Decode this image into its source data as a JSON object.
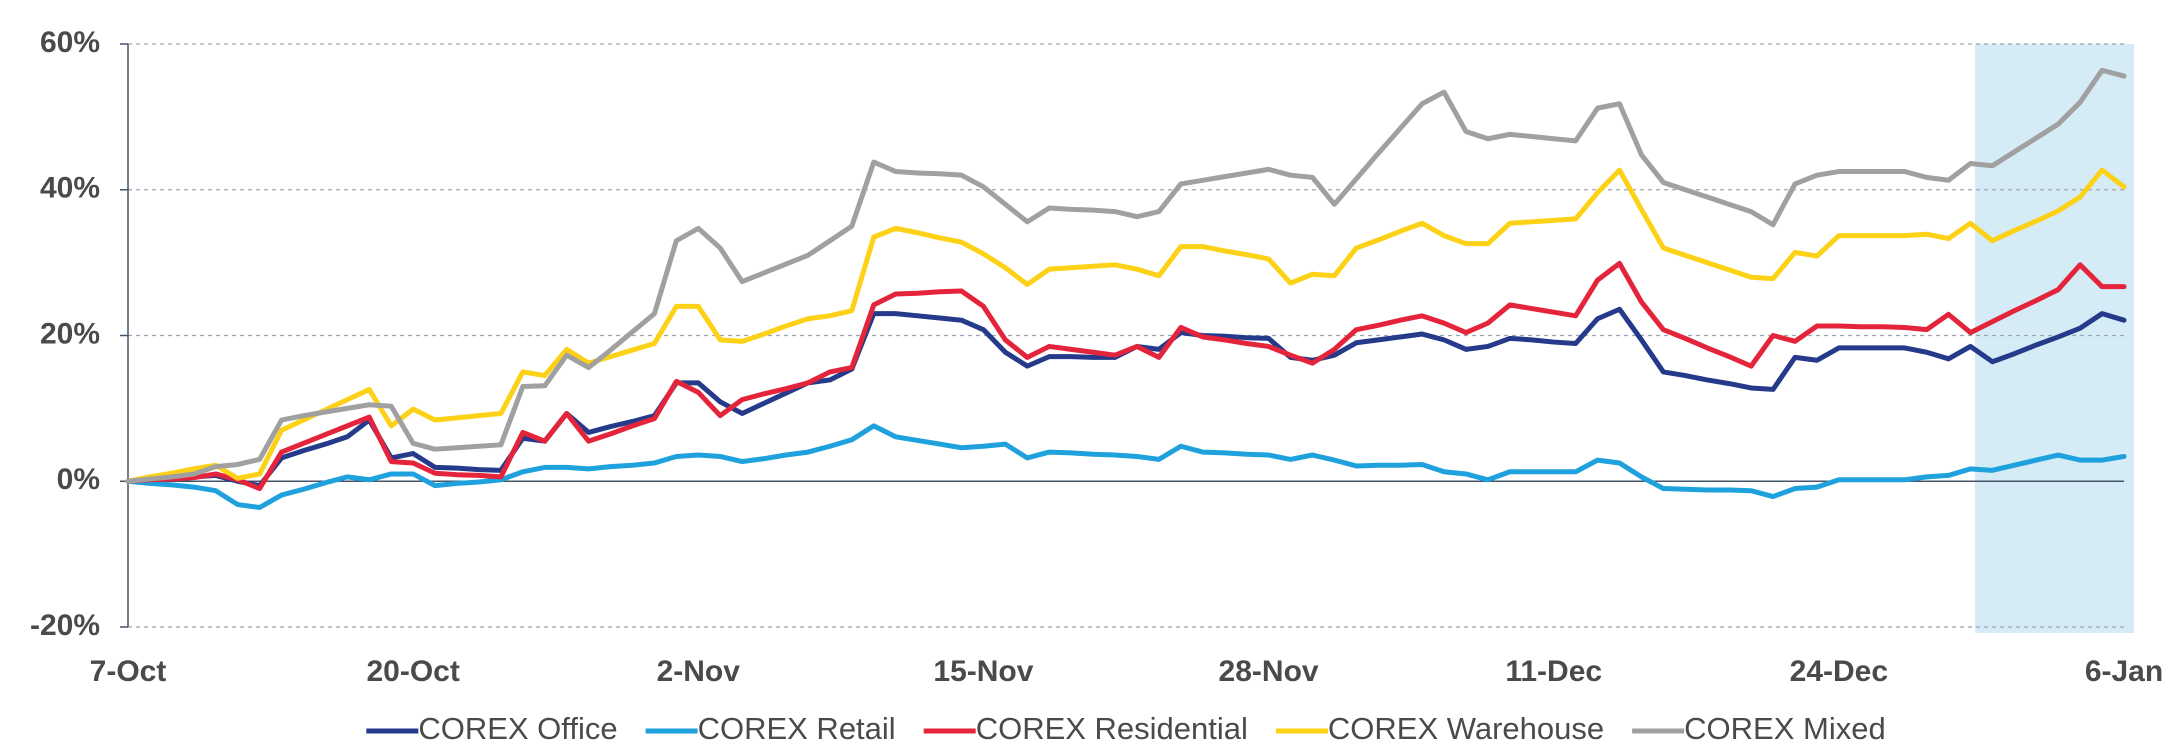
{
  "chart_data": {
    "type": "line",
    "categories": [
      "7-Oct",
      null,
      null,
      null,
      null,
      null,
      null,
      null,
      null,
      null,
      null,
      null,
      null,
      "20-Oct",
      null,
      null,
      null,
      null,
      null,
      null,
      null,
      null,
      null,
      null,
      null,
      null,
      "2-Nov",
      null,
      null,
      null,
      null,
      null,
      null,
      null,
      null,
      null,
      null,
      null,
      null,
      "15-Nov",
      null,
      null,
      null,
      null,
      null,
      null,
      null,
      null,
      null,
      null,
      null,
      null,
      "28-Nov",
      null,
      null,
      null,
      null,
      null,
      null,
      null,
      null,
      null,
      null,
      null,
      null,
      "11-Dec",
      null,
      null,
      null,
      null,
      null,
      null,
      null,
      null,
      null,
      null,
      null,
      null,
      "24-Dec",
      null,
      null,
      null,
      null,
      null,
      null,
      null,
      null,
      null,
      null,
      null,
      null,
      "6-Jan"
    ],
    "series": [
      {
        "name": "COREX Office",
        "color": "#253a8a",
        "values": [
          0,
          0.2,
          0.4,
          0.6,
          0.8,
          0,
          -0.6,
          3.2,
          4.2,
          5.1,
          6.1,
          8.4,
          3.2,
          3.8,
          1.9,
          1.8,
          1.6,
          1.5,
          5.9,
          5.5,
          9.3,
          6.7,
          7.5,
          8.2,
          9,
          13.5,
          13.5,
          10.9,
          9.3,
          10.7,
          12.1,
          13.5,
          13.9,
          15.4,
          23,
          23,
          22.7,
          22.4,
          22.1,
          20.8,
          17.7,
          15.8,
          17.1,
          17.1,
          17.0,
          17,
          18.5,
          18.1,
          20.4,
          20,
          19.9,
          19.7,
          19.6,
          17,
          16.6,
          17.3,
          19,
          19.4,
          19.8,
          20.2,
          19.4,
          18.1,
          18.5,
          19.6,
          19.4,
          19.1,
          18.9,
          22.3,
          23.6,
          19.4,
          15,
          14.5,
          13.9,
          13.4,
          12.8,
          12.6,
          17,
          16.6,
          18.3,
          18.3,
          18.3,
          18.3,
          17.7,
          16.8,
          18.5,
          16.4,
          17.5,
          18.7,
          19.8,
          21,
          23,
          22.1
        ]
      },
      {
        "name": "COREX Retail",
        "color": "#1ea1dc",
        "values": [
          0,
          -0.3,
          -0.5,
          -0.8,
          -1.3,
          -3.2,
          -3.6,
          -1.9,
          -1.1,
          -0.2,
          0.6,
          0.2,
          1,
          1,
          -0.6,
          -0.3,
          -0.1,
          0.2,
          1.3,
          1.9,
          1.9,
          1.7,
          2.0,
          2.2,
          2.5,
          3.4,
          3.6,
          3.4,
          2.7,
          3.1,
          3.6,
          4,
          4.8,
          5.7,
          7.6,
          6.1,
          5.6,
          5.1,
          4.6,
          4.8,
          5.1,
          3.2,
          4,
          3.9,
          3.7,
          3.6,
          3.4,
          3,
          4.8,
          4,
          3.9,
          3.7,
          3.6,
          3,
          3.6,
          2.9,
          2.1,
          2.2,
          2.2,
          2.3,
          1.3,
          1,
          0.2,
          1.3,
          1.3,
          1.3,
          1.3,
          2.9,
          2.5,
          0.6,
          -1,
          -1.1,
          -1.2,
          -1.2,
          -1.3,
          -2.1,
          -1,
          -0.8,
          0.2,
          0.2,
          0.2,
          0.2,
          0.6,
          0.8,
          1.7,
          1.5,
          2.2,
          2.9,
          3.6,
          2.9,
          2.9,
          3.4
        ]
      },
      {
        "name": "COREX Residential",
        "color": "#e4243b",
        "values": [
          0,
          0.2,
          0.3,
          0.5,
          1.0,
          0.2,
          -1.0,
          4,
          5.2,
          6.4,
          7.6,
          8.8,
          2.7,
          2.5,
          1.1,
          0.9,
          0.8,
          0.6,
          6.7,
          5.5,
          9.3,
          5.5,
          6.5,
          7.6,
          8.6,
          13.7,
          12.2,
          9,
          11.2,
          12,
          12.7,
          13.5,
          15,
          15.6,
          24.2,
          25.7,
          25.8,
          26.0,
          26.1,
          24,
          19.4,
          17,
          18.5,
          18.1,
          17.7,
          17.3,
          18.5,
          17,
          21.1,
          19.8,
          19.4,
          18.9,
          18.5,
          17.3,
          16.2,
          18.1,
          20.8,
          21.4,
          22.1,
          22.7,
          21.7,
          20.4,
          21.7,
          24.2,
          23.7,
          23.2,
          22.7,
          27.6,
          29.9,
          24.6,
          20.8,
          19.6,
          18.3,
          17.1,
          15.8,
          20,
          19.2,
          21.3,
          21.3,
          21.2,
          21.2,
          21.1,
          20.8,
          22.9,
          20.4,
          21.9,
          23.4,
          24.8,
          26.3,
          29.7,
          26.7,
          26.7
        ]
      },
      {
        "name": "COREX Warehouse",
        "color": "#fcd116",
        "values": [
          0,
          0.6,
          1.1,
          1.7,
          2.2,
          0.4,
          1,
          7,
          8.4,
          9.8,
          11.2,
          12.6,
          7.6,
          9.9,
          8.4,
          8.7,
          9.0,
          9.3,
          15,
          14.5,
          18.1,
          16.2,
          17.1,
          18.0,
          18.9,
          24,
          24,
          19.4,
          19.2,
          20.2,
          21.3,
          22.3,
          22.7,
          23.4,
          33.5,
          34.7,
          34.1,
          33.4,
          32.8,
          31.2,
          29.3,
          27,
          29.1,
          29.3,
          29.5,
          29.7,
          29.1,
          28.2,
          32.2,
          32.2,
          31.6,
          31.1,
          30.5,
          27.2,
          28.4,
          28.2,
          32,
          33.1,
          34.3,
          35.4,
          33.7,
          32.6,
          32.6,
          35.4,
          35.6,
          35.8,
          36,
          39.6,
          42.7,
          37.3,
          32,
          31,
          30,
          29,
          28,
          27.8,
          31.4,
          30.9,
          33.7,
          33.7,
          33.7,
          33.7,
          33.9,
          33.3,
          35.4,
          33,
          34.4,
          35.7,
          37.1,
          39,
          42.7,
          40.4
        ]
      },
      {
        "name": "COREX Mixed",
        "color": "#a0a0a0",
        "values": [
          0,
          0.3,
          0.6,
          1.0,
          2.0,
          2.3,
          3.0,
          8.4,
          9.0,
          9.5,
          10.0,
          10.5,
          10.3,
          5.2,
          4.4,
          4.6,
          4.8,
          5.0,
          13.0,
          13.1,
          17.3,
          15.6,
          18.0,
          20.5,
          23.0,
          33.0,
          34.7,
          32.0,
          27.4,
          28.6,
          29.8,
          31.0,
          33.0,
          35.0,
          43.8,
          42.5,
          42.3,
          42.2,
          42.0,
          40.4,
          38.0,
          35.6,
          37.5,
          37.3,
          37.2,
          37.0,
          36.3,
          37.0,
          40.8,
          41.3,
          41.8,
          42.3,
          42.8,
          42.0,
          41.7,
          38.0,
          41.5,
          45.0,
          48.4,
          51.8,
          53.4,
          48.0,
          47.0,
          47.6,
          47.3,
          47.0,
          46.7,
          51.2,
          51.8,
          44.8,
          41.0,
          40.0,
          39.0,
          38.0,
          37.0,
          35.2,
          40.8,
          42.0,
          42.5,
          42.5,
          42.5,
          42.5,
          41.7,
          41.3,
          43.6,
          43.3,
          45.2,
          47.1,
          49.0,
          52.0,
          56.4,
          55.6
        ]
      }
    ],
    "ylim": [
      -20,
      60
    ],
    "yticks": [
      {
        "value": -20,
        "label": "-20%"
      },
      {
        "value": 0,
        "label": "0%"
      },
      {
        "value": 20,
        "label": "20%"
      },
      {
        "value": 40,
        "label": "40%"
      },
      {
        "value": 60,
        "label": "60%"
      }
    ],
    "grid": true,
    "legend": "bottom"
  }
}
